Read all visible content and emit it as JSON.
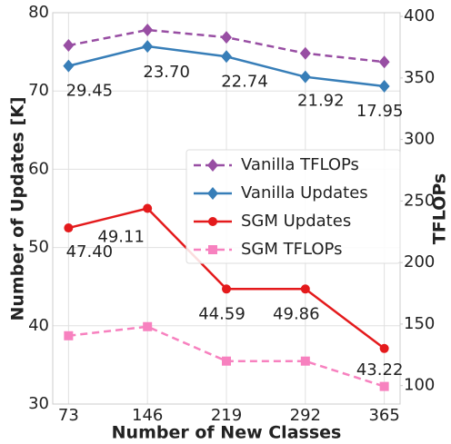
{
  "chart_data": {
    "type": "line",
    "xlabel": "Number of New Classes",
    "ylabel": "Number of Updates [K]",
    "y2label": "TFLOPs",
    "x": [
      73,
      146,
      219,
      292,
      365
    ],
    "xlim": [
      58.4,
      379.6
    ],
    "xticks": [
      73,
      146,
      219,
      292,
      365
    ],
    "ylim": [
      30,
      80
    ],
    "yticks": [
      30,
      40,
      50,
      60,
      70,
      80
    ],
    "y2lim": [
      85,
      403
    ],
    "y2ticks": [
      100,
      150,
      200,
      250,
      300,
      350,
      400
    ],
    "grid": true,
    "legend": "center right",
    "series": [
      {
        "name": "Vanilla TFLOPs",
        "color": "#984ea3",
        "dashed": true,
        "marker": "diamond",
        "axis": "y2",
        "values": [
          376.4,
          389,
          383,
          370,
          363
        ]
      },
      {
        "name": "Vanilla Updates",
        "color": "#377eb8",
        "dashed": false,
        "marker": "diamond",
        "axis": "y",
        "values": [
          73.2,
          75.7,
          74.4,
          71.8,
          70.6
        ],
        "annotations": [
          "29.45",
          "23.70",
          "22.74",
          "21.92",
          "17.95"
        ]
      },
      {
        "name": "SGM Updates",
        "color": "#e41a1c",
        "dashed": false,
        "marker": "circle",
        "axis": "y",
        "values": [
          52.5,
          55.0,
          44.7,
          44.7,
          37.1
        ],
        "annotations": [
          "47.40",
          "49.11",
          "44.59",
          "49.86",
          "43.22"
        ]
      },
      {
        "name": "SGM TFLOPs",
        "color": "#f781bf",
        "dashed": true,
        "marker": "square",
        "axis": "y2",
        "values": [
          140.5,
          147.9,
          119.9,
          119.9,
          99.3
        ]
      }
    ]
  }
}
